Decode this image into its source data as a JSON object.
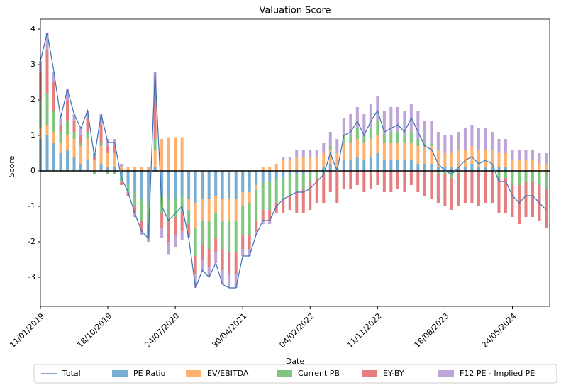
{
  "chart_data": {
    "type": "stacked_bar_line",
    "title": "Valuation Score",
    "x_label": "Date",
    "y_label": "Score",
    "categories": [
      "11/01/2019",
      null,
      null,
      null,
      null,
      null,
      null,
      null,
      null,
      null,
      "18/10/2019",
      null,
      null,
      null,
      null,
      null,
      null,
      null,
      null,
      null,
      "24/07/2020",
      null,
      null,
      null,
      null,
      null,
      null,
      null,
      null,
      null,
      "30/04/2021",
      null,
      null,
      null,
      null,
      null,
      null,
      null,
      null,
      null,
      "04/02/2022",
      null,
      null,
      null,
      null,
      null,
      null,
      null,
      null,
      null,
      "11/11/2022",
      null,
      null,
      null,
      null,
      null,
      null,
      null,
      null,
      null,
      "18/08/2023",
      null,
      null,
      null,
      null,
      null,
      null,
      null,
      null,
      null,
      "24/05/2024",
      null,
      null,
      null,
      null,
      null
    ],
    "ylim": [
      -3.82,
      4.28
    ],
    "yticks": [
      -3,
      -2,
      -1,
      0,
      1,
      2,
      3,
      4
    ],
    "zero_line": true,
    "legend": "below",
    "line": {
      "name": "Total",
      "color": "#3b72b0",
      "values": [
        3.1,
        3.9,
        2.8,
        1.5,
        2.3,
        1.6,
        1.2,
        1.7,
        0.4,
        1.6,
        0.8,
        0.8,
        -0.2,
        -0.6,
        -1.2,
        -1.7,
        -1.9,
        2.8,
        -1.0,
        -1.4,
        -1.2,
        -1.0,
        -1.9,
        -3.3,
        -2.8,
        -3.0,
        -2.6,
        -3.2,
        -3.3,
        -3.3,
        -2.4,
        -2.4,
        -1.8,
        -1.4,
        -1.4,
        -1.0,
        -0.8,
        -0.7,
        -0.6,
        -0.6,
        -0.5,
        -0.3,
        -0.1,
        0.5,
        0.0,
        1.0,
        1.1,
        1.4,
        1.0,
        1.4,
        1.7,
        1.1,
        1.2,
        1.3,
        1.1,
        1.5,
        1.1,
        0.7,
        0.6,
        0.2,
        0.0,
        -0.1,
        0.1,
        0.3,
        0.4,
        0.2,
        0.3,
        0.2,
        -0.3,
        -0.3,
        -0.7,
        -0.9,
        -0.7,
        -0.7,
        -0.9,
        -1.1
      ]
    },
    "series": [
      {
        "name": "PE Ratio",
        "color": "#1f77b4",
        "values": [
          0.9,
          1.0,
          0.8,
          0.5,
          0.6,
          0.4,
          0.2,
          0.3,
          0.0,
          0.2,
          0.1,
          0.1,
          -0.2,
          -0.4,
          -0.6,
          -0.8,
          -0.9,
          0.1,
          -0.7,
          -0.8,
          -0.8,
          -0.7,
          -0.8,
          -0.9,
          -0.8,
          -0.8,
          -0.7,
          -0.8,
          -0.8,
          -0.8,
          -0.6,
          -0.6,
          -0.4,
          -0.3,
          -0.3,
          -0.2,
          -0.2,
          -0.1,
          -0.1,
          -0.1,
          0.0,
          0.0,
          0.1,
          0.2,
          0.1,
          0.3,
          0.3,
          0.4,
          0.3,
          0.4,
          0.5,
          0.3,
          0.3,
          0.3,
          0.3,
          0.3,
          0.2,
          0.2,
          0.2,
          0.1,
          0.1,
          0.1,
          0.1,
          0.1,
          0.2,
          0.1,
          0.1,
          0.1,
          0.1,
          0.1,
          0.0,
          0.0,
          0.0,
          0.0,
          0.0,
          0.0
        ]
      },
      {
        "name": "EV/EBITDA",
        "color": "#ff7f0e",
        "values": [
          0.3,
          0.3,
          0.3,
          0.3,
          0.4,
          0.5,
          0.5,
          0.6,
          0.3,
          0.5,
          0.4,
          0.4,
          0.1,
          0.1,
          0.1,
          0.1,
          0.1,
          0.5,
          0.9,
          0.95,
          0.95,
          0.95,
          -0.3,
          -0.7,
          -0.6,
          -0.6,
          -0.5,
          -0.6,
          -0.6,
          -0.6,
          -0.4,
          -0.3,
          -0.1,
          0.1,
          0.1,
          0.2,
          0.3,
          0.3,
          0.4,
          0.4,
          0.4,
          0.4,
          0.4,
          0.4,
          0.4,
          0.5,
          0.5,
          0.5,
          0.5,
          0.5,
          0.5,
          0.5,
          0.5,
          0.5,
          0.5,
          0.5,
          0.5,
          0.5,
          0.5,
          0.5,
          0.4,
          0.4,
          0.5,
          0.5,
          0.5,
          0.5,
          0.5,
          0.5,
          0.4,
          0.4,
          0.3,
          0.3,
          0.3,
          0.3,
          0.2,
          0.2
        ]
      },
      {
        "name": "Current PB",
        "color": "#2ca02c",
        "values": [
          0.8,
          0.9,
          0.6,
          0.3,
          0.4,
          0.2,
          0.1,
          0.2,
          -0.1,
          0.1,
          -0.1,
          -0.1,
          -0.1,
          -0.2,
          -0.4,
          -0.6,
          -0.6,
          0.3,
          -0.5,
          -0.6,
          -0.5,
          -0.5,
          -0.4,
          -0.8,
          -0.7,
          -0.8,
          -0.7,
          -0.8,
          -0.9,
          -0.9,
          -0.8,
          -0.9,
          -0.9,
          -0.8,
          -0.8,
          -0.7,
          -0.6,
          -0.6,
          -0.5,
          -0.4,
          -0.3,
          -0.2,
          -0.1,
          0.1,
          0.0,
          0.2,
          0.2,
          0.3,
          0.2,
          0.3,
          0.4,
          0.2,
          0.3,
          0.3,
          0.2,
          0.3,
          0.2,
          0.1,
          0.1,
          -0.1,
          -0.1,
          -0.2,
          -0.1,
          0.0,
          0.0,
          0.0,
          0.0,
          0.0,
          -0.2,
          -0.2,
          -0.4,
          -0.4,
          -0.3,
          -0.3,
          -0.4,
          -0.5
        ]
      },
      {
        "name": "EY-BY",
        "color": "#d62728",
        "values": [
          0.8,
          1.2,
          0.8,
          0.2,
          0.6,
          0.3,
          0.2,
          0.4,
          0.1,
          0.5,
          0.2,
          0.2,
          -0.1,
          -0.1,
          -0.2,
          -0.3,
          -0.4,
          1.5,
          -0.4,
          -0.6,
          -0.5,
          -0.5,
          -0.3,
          -0.5,
          -0.4,
          -0.5,
          -0.4,
          -0.6,
          -0.6,
          -0.6,
          -0.4,
          -0.4,
          -0.3,
          -0.3,
          -0.3,
          -0.3,
          -0.4,
          -0.4,
          -0.6,
          -0.7,
          -0.8,
          -0.7,
          -0.8,
          -0.6,
          -0.9,
          -0.5,
          -0.5,
          -0.4,
          -0.6,
          -0.5,
          -0.4,
          -0.6,
          -0.6,
          -0.5,
          -0.6,
          -0.4,
          -0.6,
          -0.7,
          -0.8,
          -0.8,
          -0.9,
          -0.9,
          -0.9,
          -0.9,
          -0.9,
          -1.0,
          -0.9,
          -0.9,
          -1.0,
          -1.0,
          -0.9,
          -1.1,
          -1.0,
          -1.0,
          -1.0,
          -1.1
        ]
      },
      {
        "name": "F12 PE - Implied PE",
        "color": "#9467bd",
        "values": [
          0.3,
          0.5,
          0.3,
          0.2,
          0.3,
          0.2,
          0.2,
          0.2,
          0.1,
          0.3,
          0.2,
          0.2,
          0.1,
          0.0,
          -0.1,
          -0.1,
          -0.1,
          0.4,
          -0.3,
          -0.35,
          -0.35,
          -0.25,
          -0.1,
          -0.4,
          -0.3,
          -0.3,
          -0.3,
          -0.4,
          -0.4,
          -0.4,
          -0.2,
          -0.2,
          -0.1,
          -0.1,
          -0.1,
          0.0,
          0.1,
          0.1,
          0.2,
          0.2,
          0.2,
          0.2,
          0.3,
          0.4,
          0.4,
          0.5,
          0.6,
          0.6,
          0.6,
          0.7,
          0.7,
          0.7,
          0.7,
          0.7,
          0.7,
          0.8,
          0.8,
          0.6,
          0.6,
          0.5,
          0.5,
          0.5,
          0.5,
          0.6,
          0.6,
          0.6,
          0.6,
          0.5,
          0.4,
          0.4,
          0.3,
          0.3,
          0.3,
          0.3,
          0.3,
          0.3
        ]
      }
    ]
  }
}
